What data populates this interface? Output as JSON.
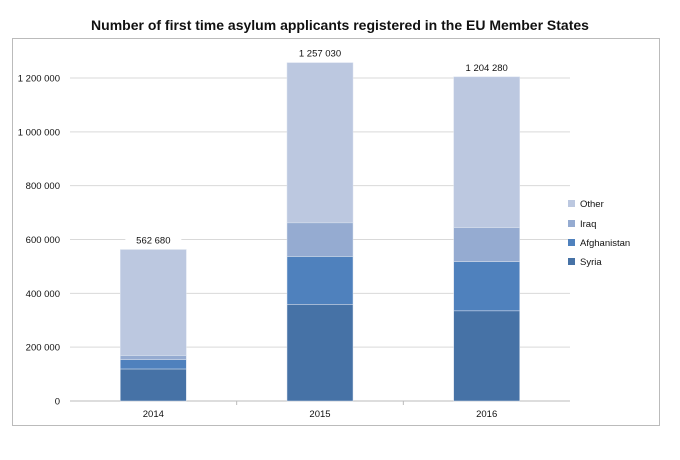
{
  "chart_data": {
    "type": "bar",
    "stacked": true,
    "title": "Number of first time asylum applicants registered in the EU Member States",
    "xlabel": "",
    "ylabel": "",
    "categories": [
      "2014",
      "2015",
      "2016"
    ],
    "ylim": [
      0,
      1200000
    ],
    "yticks": [
      0,
      200000,
      400000,
      600000,
      800000,
      1000000,
      1200000
    ],
    "ytick_labels": [
      "0",
      "200 000",
      "400 000",
      "600 000",
      "800 000",
      "1 000 000",
      "1 200 000"
    ],
    "grid": true,
    "legend_position": "right",
    "series": [
      {
        "name": "Syria",
        "color": "#4672a6",
        "values": [
          119000,
          359000,
          335000
        ]
      },
      {
        "name": "Afghanistan",
        "color": "#4f81bd",
        "values": [
          35000,
          178000,
          183000
        ]
      },
      {
        "name": "Iraq",
        "color": "#95abd1",
        "values": [
          15000,
          125000,
          126000
        ]
      },
      {
        "name": "Other",
        "color": "#bcc8e0",
        "values": [
          393680,
          595030,
          560280
        ]
      }
    ],
    "totals": [
      562680,
      1257030,
      1204280
    ],
    "total_labels": [
      "562 680",
      "1 257 030",
      "1 204 280"
    ]
  }
}
